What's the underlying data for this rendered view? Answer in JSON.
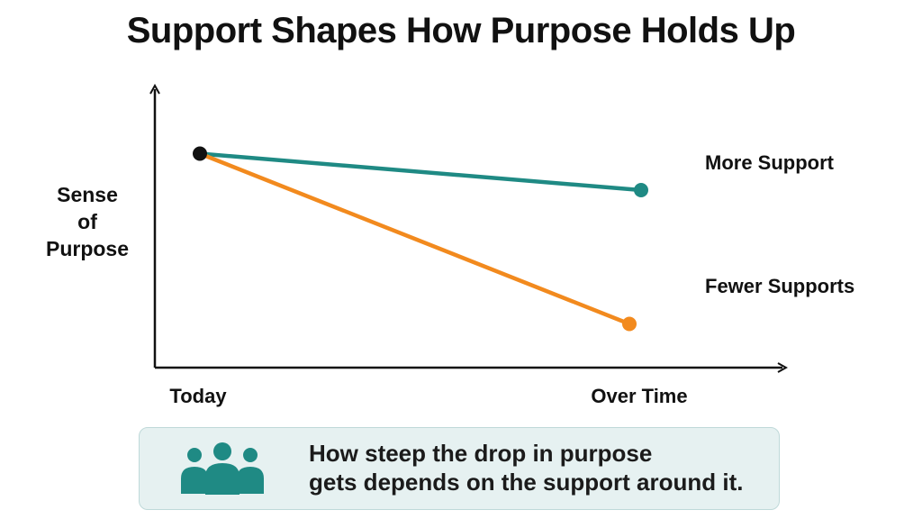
{
  "title": "Support Shapes How Purpose Holds Up",
  "chart_data": {
    "type": "line",
    "title": "Support Shapes How Purpose Holds Up",
    "ylabel": [
      "Sense",
      "of",
      "Purpose"
    ],
    "xlabel": "",
    "categories": [
      "Today",
      "Over Time"
    ],
    "ylim": [
      0,
      100
    ],
    "grid": false,
    "series": [
      {
        "name": "More Support",
        "values": [
          85,
          70
        ],
        "color": "#1f8a84"
      },
      {
        "name": "Fewer Supports",
        "values": [
          85,
          15
        ],
        "color": "#f28a1e"
      }
    ],
    "start_point_color": "#111111"
  },
  "callout": {
    "icon": "people-group-icon",
    "icon_color": "#1f8a84",
    "lines": [
      "How steep the drop in purpose",
      "gets depends on the support around it."
    ]
  }
}
